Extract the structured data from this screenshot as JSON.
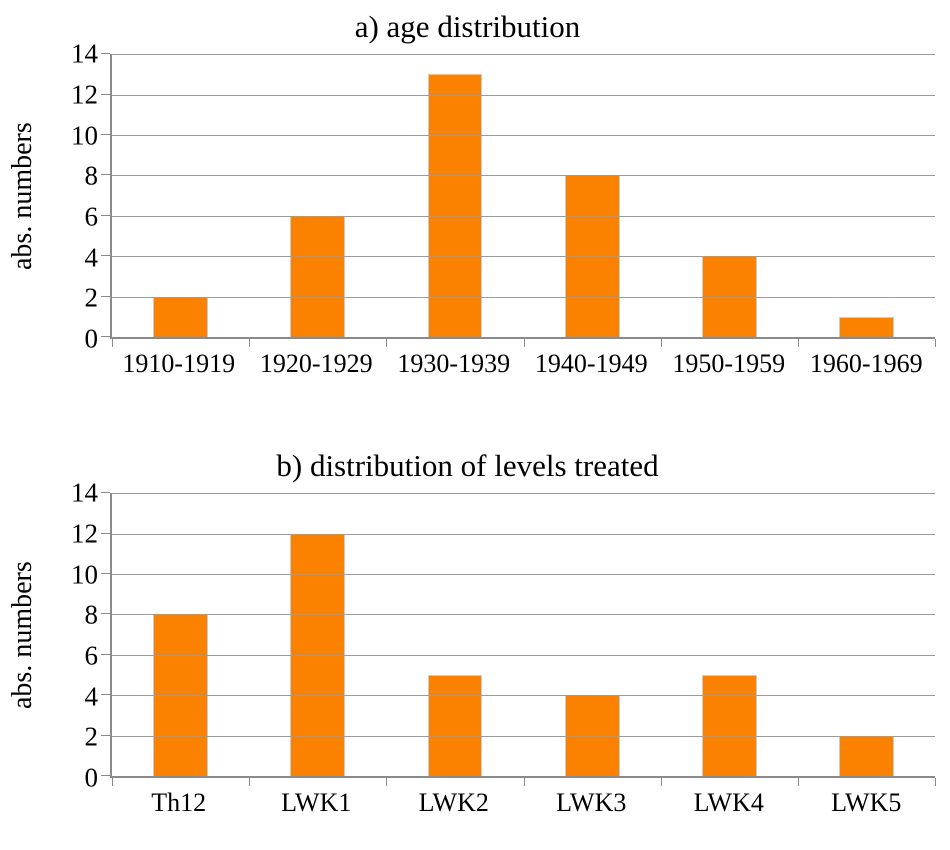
{
  "figure": {
    "background_color": "#ffffff",
    "text_color": "#000000"
  },
  "chart_data": [
    {
      "type": "bar",
      "title": "a) age distribution",
      "xlabel": "",
      "ylabel": "abs. numbers",
      "categories": [
        "1910-1919",
        "1920-1929",
        "1930-1939",
        "1940-1949",
        "1950-1959",
        "1960-1969"
      ],
      "values": [
        2,
        6,
        13,
        8,
        4,
        1
      ],
      "ylim": [
        0,
        14
      ],
      "yticks": [
        0,
        2,
        4,
        6,
        8,
        10,
        12,
        14
      ],
      "grid": true,
      "legend": "none",
      "bar_color": "#FA8200",
      "bar_border_color": "#cccccc",
      "grid_color": "#9b9b9b",
      "axis_color": "#8a8a8a"
    },
    {
      "type": "bar",
      "title": "b) distribution of levels treated",
      "xlabel": "",
      "ylabel": "abs. numbers",
      "categories": [
        "Th12",
        "LWK1",
        "LWK2",
        "LWK3",
        "LWK4",
        "LWK5"
      ],
      "values": [
        8,
        12,
        5,
        4,
        5,
        2
      ],
      "ylim": [
        0,
        14
      ],
      "yticks": [
        0,
        2,
        4,
        6,
        8,
        10,
        12,
        14
      ],
      "grid": true,
      "legend": "none",
      "bar_color": "#FA8200",
      "bar_border_color": "#cccccc",
      "grid_color": "#9b9b9b",
      "axis_color": "#8a8a8a"
    }
  ]
}
